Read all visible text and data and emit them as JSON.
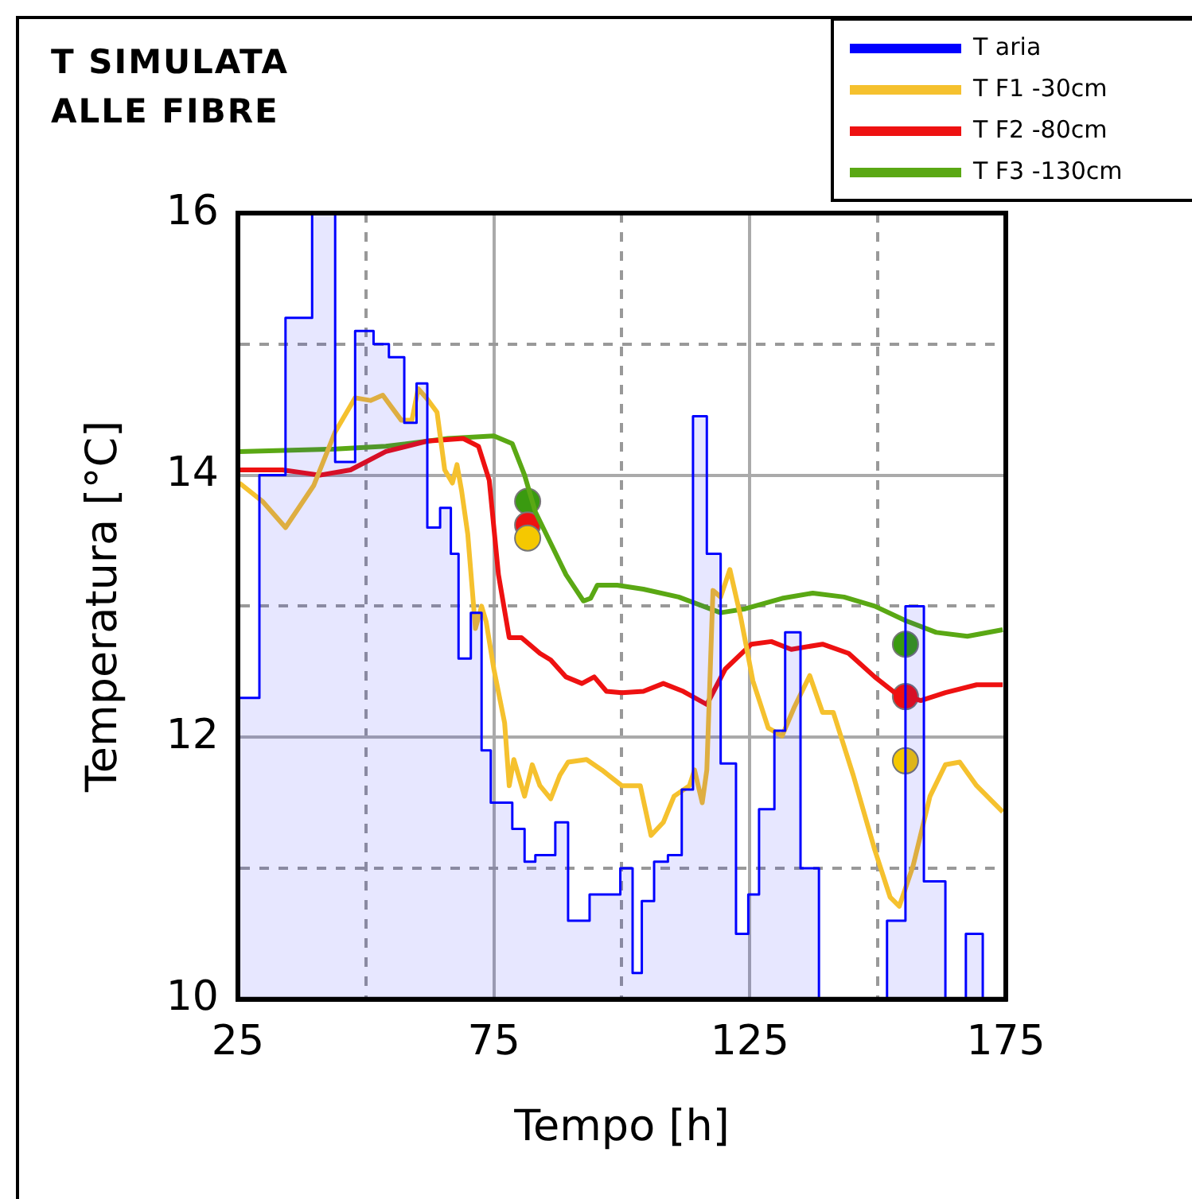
{
  "chart_data": {
    "type": "line",
    "title": "T SIMULATA ALLE FIBRE",
    "xlabel": "Tempo [h]",
    "ylabel": "Temperatura [°C]",
    "xlim": [
      25,
      175
    ],
    "xticks": [
      25,
      {
        "value": 50,
        "label": null
      },
      75,
      {
        "value": 100,
        "label": null
      },
      125,
      {
        "value": 150,
        "label": null
      },
      175
    ],
    "ylim": [
      10,
      16
    ],
    "yticks": [
      10,
      {
        "value": 11,
        "label": null
      },
      12,
      {
        "value": 13,
        "label": null
      },
      14,
      {
        "value": 15,
        "label": null
      },
      16
    ],
    "grid": true,
    "legend": "top right",
    "series": [
      {
        "type": "step",
        "name": "T aria",
        "color": "#0000ff",
        "x": [
          25.3,
          29.2,
          34.3,
          39.5,
          44,
          47.9,
          51.5,
          54.5,
          57.5,
          59.9,
          62,
          64.5,
          66.6,
          68.1,
          70.5,
          72.6,
          74.4,
          78.6,
          81,
          83.1,
          87,
          89.5,
          93.7,
          99.7,
          102.1,
          103.9,
          106.3,
          109,
          111.7,
          113.9,
          116.6,
          119.3,
          122.3,
          124.7,
          126.8,
          129.8,
          131.9,
          134.9,
          138.5,
          151.8,
          155.4,
          159,
          163.2,
          167.2,
          170.5
        ],
        "values": [
          12.3,
          14.0,
          15.2,
          16,
          14.1,
          15.1,
          15.0,
          14.9,
          14.4,
          14.7,
          13.6,
          13.75,
          13.4,
          12.6,
          12.95,
          11.9,
          11.5,
          11.3,
          11.05,
          11.1,
          11.35,
          10.6,
          10.8,
          11.0,
          10.2,
          10.75,
          11.05,
          11.1,
          11.6,
          14.45,
          13.4,
          11.8,
          10.5,
          10.8,
          11.45,
          12.05,
          12.8,
          11.0,
          10,
          10.6,
          13.0,
          10.9,
          10,
          10.5,
          10
        ]
      },
      {
        "name": "T F1 -30cm",
        "color": "#f5c12e",
        "x": [
          25.3,
          29.8,
          34.3,
          39.8,
          44,
          47.9,
          50.9,
          53.3,
          56.9,
          59,
          60.2,
          62,
          63.9,
          65.4,
          66.9,
          67.8,
          68.7,
          69.9,
          71.4,
          72.6,
          73.5,
          75,
          77.1,
          78,
          78.9,
          81,
          82.5,
          84,
          86.1,
          87.9,
          89.5,
          93.1,
          96.1,
          100,
          103.6,
          105.7,
          108.1,
          110.2,
          113.2,
          114.2,
          115.7,
          116.6,
          117.8,
          119.3,
          121.1,
          123.2,
          125.6,
          128.6,
          131.3,
          133.7,
          136.7,
          139.2,
          141.3,
          145.2,
          149.4,
          152.4,
          154.2,
          156.9,
          160.2,
          163.2,
          166,
          169.3,
          174.4
        ],
        "values": [
          13.94,
          13.8,
          13.6,
          13.92,
          14.33,
          14.59,
          14.57,
          14.61,
          14.42,
          14.42,
          14.66,
          14.58,
          14.48,
          14.04,
          13.94,
          14.08,
          13.88,
          13.55,
          12.83,
          13.0,
          12.88,
          12.52,
          12.11,
          11.63,
          11.83,
          11.55,
          11.79,
          11.63,
          11.53,
          11.71,
          11.81,
          11.83,
          11.75,
          11.63,
          11.63,
          11.25,
          11.35,
          11.55,
          11.63,
          11.75,
          11.5,
          11.75,
          13.12,
          13.07,
          13.28,
          12.92,
          12.43,
          12.07,
          12.01,
          12.23,
          12.47,
          12.19,
          12.19,
          11.71,
          11.14,
          10.78,
          10.71,
          11.02,
          11.55,
          11.79,
          11.81,
          11.63,
          11.43
        ]
      },
      {
        "name": "T F2 -80cm",
        "color": "#ee1111",
        "x": [
          25.3,
          33.7,
          41,
          47,
          53.9,
          62,
          69,
          72,
          74.1,
          75.9,
          78,
          80.4,
          84,
          86.1,
          89.1,
          92.2,
          94.6,
          97,
          100,
          104.2,
          108.1,
          112,
          116.6,
          120.2,
          125.3,
          129.2,
          133.1,
          139.2,
          144.3,
          149.4,
          153.3,
          158.4,
          163.2,
          169.3,
          174.4
        ],
        "values": [
          14.04,
          14.04,
          14.0,
          14.04,
          14.18,
          14.26,
          14.28,
          14.22,
          13.96,
          13.24,
          12.76,
          12.76,
          12.64,
          12.59,
          12.46,
          12.41,
          12.46,
          12.35,
          12.34,
          12.35,
          12.41,
          12.35,
          12.25,
          12.52,
          12.71,
          12.73,
          12.67,
          12.71,
          12.64,
          12.46,
          12.34,
          12.28,
          12.34,
          12.4,
          12.4
        ]
      },
      {
        "name": "T F3 -130cm",
        "color": "#5aa814",
        "x": [
          25.3,
          44,
          53.9,
          66,
          75,
          78.6,
          81,
          83.1,
          86.1,
          89.1,
          92.5,
          93.9,
          95.2,
          99.1,
          104.2,
          111.1,
          119.3,
          124.1,
          131.3,
          137.3,
          143.4,
          149.4,
          155.4,
          161.4,
          167.5,
          174.4
        ],
        "values": [
          14.18,
          14.2,
          14.22,
          14.28,
          14.3,
          14.24,
          14.0,
          13.72,
          13.48,
          13.24,
          13.04,
          13.06,
          13.16,
          13.16,
          13.13,
          13.07,
          12.95,
          12.98,
          13.06,
          13.1,
          13.07,
          13.0,
          12.89,
          12.8,
          12.77,
          12.82
        ]
      },
      {
        "type": "scatter",
        "marker": "circle",
        "color": "#f5c800",
        "x": [
          81.6,
          155.4
        ],
        "values": [
          13.52,
          11.82
        ]
      },
      {
        "type": "scatter",
        "marker": "circle",
        "color": "#ee1111",
        "x": [
          81.6,
          155.4
        ],
        "values": [
          13.62,
          12.31
        ]
      },
      {
        "type": "scatter",
        "marker": "circle",
        "color": "#3a9a10",
        "x": [
          81.6,
          155.4
        ],
        "values": [
          13.8,
          12.71
        ]
      }
    ]
  }
}
